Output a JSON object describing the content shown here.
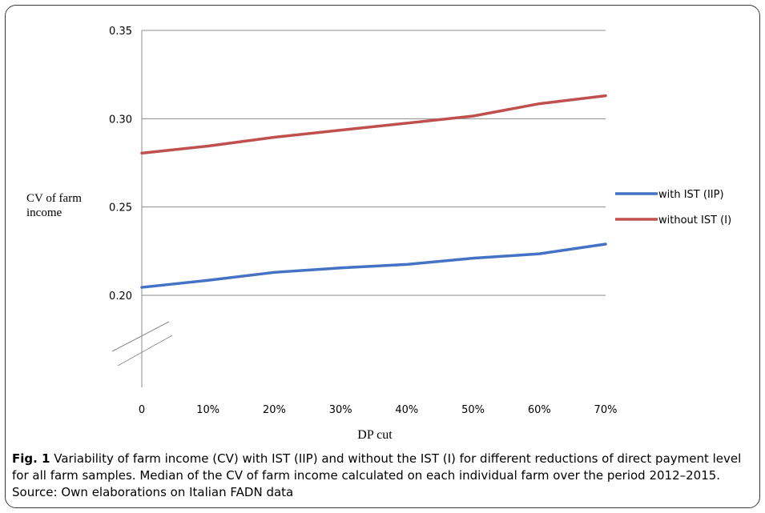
{
  "chart_data": {
    "type": "line",
    "ylabel_lines": [
      "CV of farm",
      "income"
    ],
    "xlabel": "DP cut",
    "categories": [
      "0",
      "10%",
      "20%",
      "30%",
      "40%",
      "50%",
      "60%",
      "70%"
    ],
    "yticks": [
      "0.20",
      "0.25",
      "0.30",
      "0.35"
    ],
    "ylim": [
      0.2,
      0.35
    ],
    "axis_break": true,
    "grid": true,
    "legend_position": "right",
    "series": [
      {
        "name": "with IST (IIP)",
        "color": "#4472c4",
        "values": [
          0.2045,
          0.2085,
          0.213,
          0.2155,
          0.2175,
          0.221,
          0.2235,
          0.229
        ]
      },
      {
        "name": "without IST (I)",
        "color": "#c0504d",
        "values": [
          0.2805,
          0.2845,
          0.2895,
          0.2935,
          0.2975,
          0.3015,
          0.3085,
          0.313
        ]
      }
    ]
  },
  "caption": {
    "label": "Fig. 1",
    "text": " Variability of farm income (CV) with IST (IIP) and without the IST (I) for different reductions of direct payment level for all farm samples. Median of the CV of farm income calculated on each individual farm over the period 2012–2015. Source: Own elaborations on Italian FADN data"
  }
}
